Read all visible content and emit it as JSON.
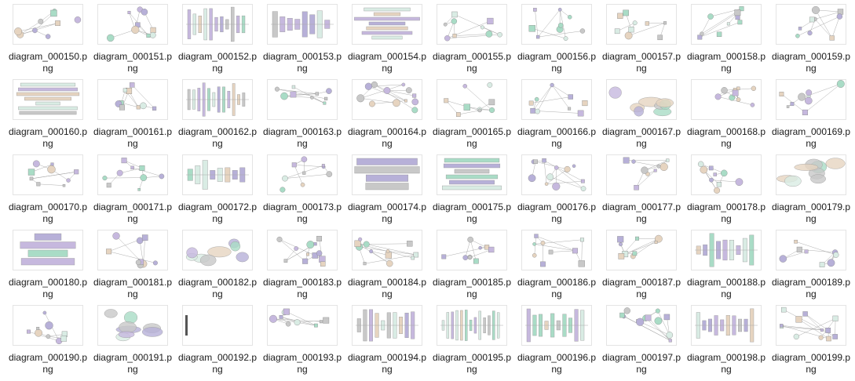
{
  "files": [
    {
      "name": "diagram_000150.png",
      "style": "network"
    },
    {
      "name": "diagram_000151.png",
      "style": "network"
    },
    {
      "name": "diagram_000152.png",
      "style": "bars-v"
    },
    {
      "name": "diagram_000153.png",
      "style": "bars-v"
    },
    {
      "name": "diagram_000154.png",
      "style": "bars-h"
    },
    {
      "name": "diagram_000155.png",
      "style": "network"
    },
    {
      "name": "diagram_000156.png",
      "style": "network"
    },
    {
      "name": "diagram_000157.png",
      "style": "network"
    },
    {
      "name": "diagram_000158.png",
      "style": "network"
    },
    {
      "name": "diagram_000159.png",
      "style": "network"
    },
    {
      "name": "diagram_000160.png",
      "style": "bars-h"
    },
    {
      "name": "diagram_000161.png",
      "style": "network"
    },
    {
      "name": "diagram_000162.png",
      "style": "bars-v"
    },
    {
      "name": "diagram_000163.png",
      "style": "network"
    },
    {
      "name": "diagram_000164.png",
      "style": "cluster"
    },
    {
      "name": "diagram_000165.png",
      "style": "network"
    },
    {
      "name": "diagram_000166.png",
      "style": "network"
    },
    {
      "name": "diagram_000167.png",
      "style": "ellipses"
    },
    {
      "name": "diagram_000168.png",
      "style": "network"
    },
    {
      "name": "diagram_000169.png",
      "style": "network"
    },
    {
      "name": "diagram_000170.png",
      "style": "network"
    },
    {
      "name": "diagram_000171.png",
      "style": "network"
    },
    {
      "name": "diagram_000172.png",
      "style": "bars-v"
    },
    {
      "name": "diagram_000173.png",
      "style": "network"
    },
    {
      "name": "diagram_000174.png",
      "style": "bars-h"
    },
    {
      "name": "diagram_000175.png",
      "style": "bars-h"
    },
    {
      "name": "diagram_000176.png",
      "style": "cluster"
    },
    {
      "name": "diagram_000177.png",
      "style": "network"
    },
    {
      "name": "diagram_000178.png",
      "style": "network"
    },
    {
      "name": "diagram_000179.png",
      "style": "ellipses"
    },
    {
      "name": "diagram_000180.png",
      "style": "bars-h"
    },
    {
      "name": "diagram_000181.png",
      "style": "network"
    },
    {
      "name": "diagram_000182.png",
      "style": "ellipses"
    },
    {
      "name": "diagram_000183.png",
      "style": "cluster"
    },
    {
      "name": "diagram_000184.png",
      "style": "cluster"
    },
    {
      "name": "diagram_000185.png",
      "style": "network"
    },
    {
      "name": "diagram_000186.png",
      "style": "network"
    },
    {
      "name": "diagram_000187.png",
      "style": "network"
    },
    {
      "name": "diagram_000188.png",
      "style": "bars-v"
    },
    {
      "name": "diagram_000189.png",
      "style": "network"
    },
    {
      "name": "diagram_000190.png",
      "style": "network"
    },
    {
      "name": "diagram_000191.png",
      "style": "ellipses"
    },
    {
      "name": "diagram_000192.png",
      "style": "blank"
    },
    {
      "name": "diagram_000193.png",
      "style": "network"
    },
    {
      "name": "diagram_000194.png",
      "style": "bars-v"
    },
    {
      "name": "diagram_000195.png",
      "style": "bars-v"
    },
    {
      "name": "diagram_000196.png",
      "style": "bars-v"
    },
    {
      "name": "diagram_000197.png",
      "style": "cluster"
    },
    {
      "name": "diagram_000198.png",
      "style": "bars-v"
    },
    {
      "name": "diagram_000199.png",
      "style": "cluster"
    }
  ],
  "palette": [
    "#a9dcc6",
    "#c6b8de",
    "#e6d4c0",
    "#c8c8c8",
    "#b7b0d8",
    "#d9ece4"
  ]
}
